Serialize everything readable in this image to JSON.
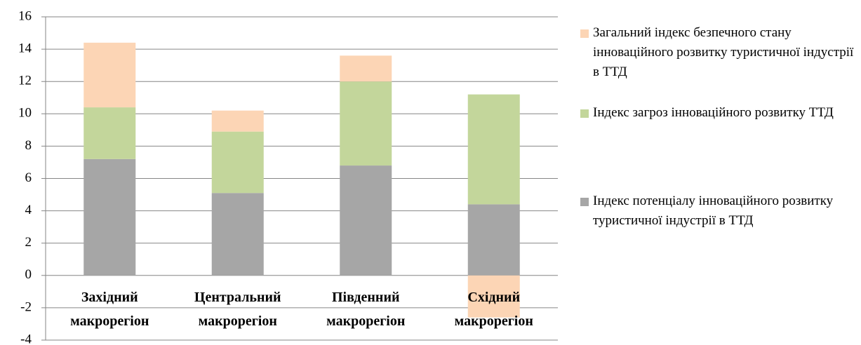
{
  "chart_data": {
    "type": "stacked_bar",
    "categories": [
      "Західний макрорегіон",
      "Центральний макрорегіон",
      "Південний макрорегіон",
      "Східний макрорегіон"
    ],
    "series": [
      {
        "name": "Індекс потенціалу інноваційного розвитку туристичної індустрії в ТТД",
        "color": "#a6a6a6",
        "values": [
          7.2,
          5.1,
          6.8,
          4.4
        ]
      },
      {
        "name": "Індекс загроз інноваційного розвитку ТТД",
        "color": "#c3d69b",
        "values": [
          3.2,
          3.8,
          5.2,
          6.8
        ]
      },
      {
        "name": "Загальний індекс безпечного стану інноваційного розвитку туристичної індустрії в ТТД",
        "color": "#fcd5b5",
        "values": [
          4.0,
          1.3,
          1.6,
          -2.6
        ]
      }
    ],
    "ylim": [
      -4,
      16
    ],
    "yticks": [
      -4,
      -2,
      0,
      2,
      4,
      6,
      8,
      10,
      12,
      14,
      16
    ],
    "grid": true
  }
}
